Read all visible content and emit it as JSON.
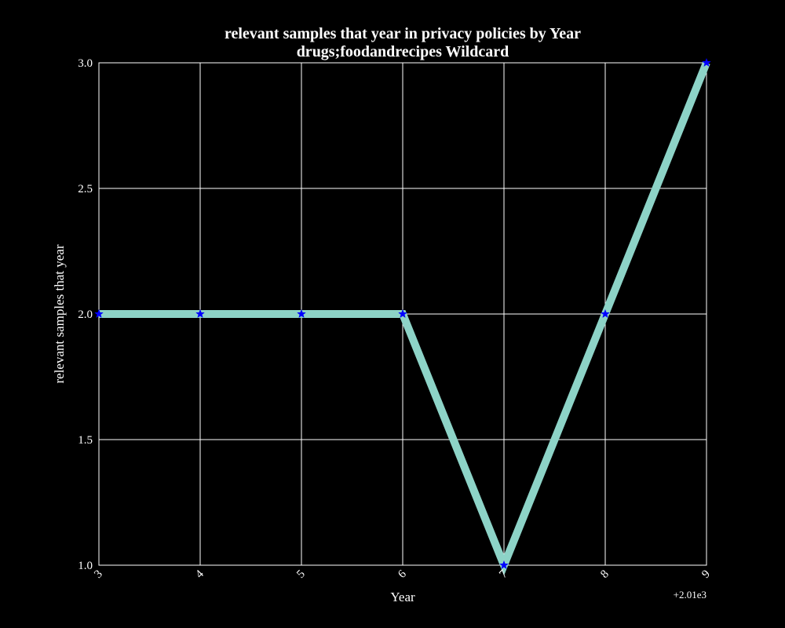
{
  "chart_data": {
    "type": "line",
    "title": "relevant samples that year in privacy policies by Year",
    "subtitle": "drugs;foodandrecipes Wildcard",
    "xlabel": "Year",
    "ylabel": "relevant samples that year",
    "x": [
      2013,
      2014,
      2015,
      2016,
      2017,
      2018,
      2019
    ],
    "x_tick_labels": [
      "3",
      "4",
      "5",
      "6",
      "7",
      "8",
      "9"
    ],
    "x_offset_label": "+2.01e3",
    "y_tick_labels": [
      "1.0",
      "1.5",
      "2.0",
      "2.5",
      "3.0"
    ],
    "xlim": [
      2013,
      2019
    ],
    "ylim": [
      1.0,
      3.0
    ],
    "series": [
      {
        "values": [
          2,
          2,
          2,
          2,
          1,
          2,
          3
        ]
      }
    ],
    "grid": true,
    "colors": {
      "background": "#000000",
      "line": "#8dd3c7",
      "marker": "#0000ff",
      "grid": "#ffffff",
      "text": "#ffffff"
    }
  }
}
